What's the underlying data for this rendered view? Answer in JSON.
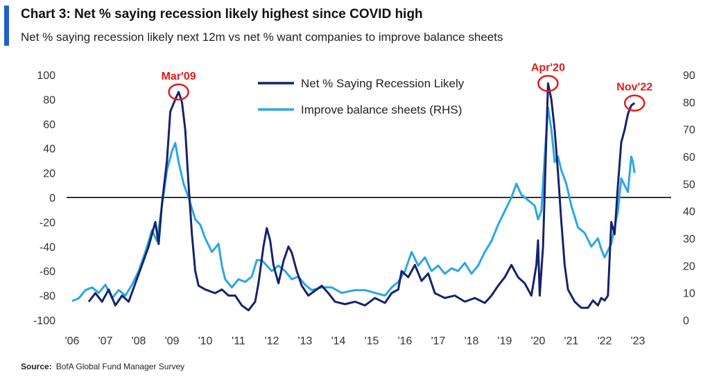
{
  "header": {
    "title": "Chart 3: Net % saying recession likely highest since COVID high",
    "subtitle": "Net % saying recession likely next 12m vs net % want companies to improve balance sheets"
  },
  "source": {
    "label": "Source:",
    "text": "BofA Global Fund Manager Survey"
  },
  "colors": {
    "accent": "#1f5fd1",
    "recession": "#16226b",
    "balance": "#2aa6e3",
    "annotation": "#e31b1b",
    "zero_line": "#333333"
  },
  "chart_data": {
    "type": "line",
    "xlim": [
      2006,
      2023.3
    ],
    "x_ticks": [
      {
        "x": 2006,
        "label": "'06"
      },
      {
        "x": 2007,
        "label": "'07"
      },
      {
        "x": 2008,
        "label": "'08"
      },
      {
        "x": 2009,
        "label": "'09"
      },
      {
        "x": 2010,
        "label": "'10"
      },
      {
        "x": 2011,
        "label": "'11"
      },
      {
        "x": 2012,
        "label": "'12"
      },
      {
        "x": 2013,
        "label": "'13"
      },
      {
        "x": 2014,
        "label": "'14"
      },
      {
        "x": 2015,
        "label": "'15"
      },
      {
        "x": 2016,
        "label": "'16"
      },
      {
        "x": 2017,
        "label": "'17"
      },
      {
        "x": 2018,
        "label": "'18"
      },
      {
        "x": 2019,
        "label": "'19"
      },
      {
        "x": 2020,
        "label": "'20"
      },
      {
        "x": 2021,
        "label": "'21"
      },
      {
        "x": 2022,
        "label": "'22"
      },
      {
        "x": 2023,
        "label": "'23"
      }
    ],
    "y_left": {
      "lim": [
        -100,
        100
      ],
      "ticks": [
        100,
        80,
        60,
        40,
        20,
        0,
        -20,
        -40,
        -60,
        -80,
        -100
      ]
    },
    "y_right": {
      "lim": [
        0,
        90
      ],
      "ticks": [
        90,
        80,
        70,
        60,
        50,
        40,
        30,
        20,
        10,
        0
      ]
    },
    "legend_position": "top-center",
    "series": [
      {
        "name": "Net % Saying Recession Likely",
        "axis": "left",
        "color": "#16226b",
        "points": [
          [
            2006.5,
            -85
          ],
          [
            2006.7,
            -78
          ],
          [
            2006.9,
            -85
          ],
          [
            2007.1,
            -75
          ],
          [
            2007.3,
            -88
          ],
          [
            2007.5,
            -80
          ],
          [
            2007.7,
            -85
          ],
          [
            2007.9,
            -70
          ],
          [
            2008.1,
            -55
          ],
          [
            2008.3,
            -40
          ],
          [
            2008.5,
            -20
          ],
          [
            2008.6,
            -38
          ],
          [
            2008.7,
            -5
          ],
          [
            2008.85,
            30
          ],
          [
            2008.95,
            70
          ],
          [
            2009.1,
            80
          ],
          [
            2009.2,
            86
          ],
          [
            2009.3,
            78
          ],
          [
            2009.4,
            55
          ],
          [
            2009.5,
            10
          ],
          [
            2009.6,
            -30
          ],
          [
            2009.7,
            -60
          ],
          [
            2009.8,
            -72
          ],
          [
            2010.0,
            -75
          ],
          [
            2010.3,
            -78
          ],
          [
            2010.5,
            -75
          ],
          [
            2010.7,
            -80
          ],
          [
            2010.9,
            -80
          ],
          [
            2011.1,
            -88
          ],
          [
            2011.3,
            -92
          ],
          [
            2011.5,
            -85
          ],
          [
            2011.6,
            -70
          ],
          [
            2011.75,
            -40
          ],
          [
            2011.85,
            -25
          ],
          [
            2011.95,
            -35
          ],
          [
            2012.05,
            -55
          ],
          [
            2012.2,
            -70
          ],
          [
            2012.35,
            -52
          ],
          [
            2012.5,
            -40
          ],
          [
            2012.6,
            -45
          ],
          [
            2012.75,
            -60
          ],
          [
            2012.9,
            -72
          ],
          [
            2013.1,
            -80
          ],
          [
            2013.3,
            -76
          ],
          [
            2013.5,
            -72
          ],
          [
            2013.7,
            -78
          ],
          [
            2013.9,
            -85
          ],
          [
            2014.2,
            -87
          ],
          [
            2014.5,
            -85
          ],
          [
            2014.8,
            -88
          ],
          [
            2015.1,
            -82
          ],
          [
            2015.4,
            -86
          ],
          [
            2015.6,
            -78
          ],
          [
            2015.8,
            -75
          ],
          [
            2015.9,
            -60
          ],
          [
            2016.1,
            -65
          ],
          [
            2016.3,
            -55
          ],
          [
            2016.5,
            -68
          ],
          [
            2016.7,
            -62
          ],
          [
            2016.9,
            -78
          ],
          [
            2017.2,
            -82
          ],
          [
            2017.5,
            -80
          ],
          [
            2017.8,
            -85
          ],
          [
            2018.1,
            -82
          ],
          [
            2018.4,
            -86
          ],
          [
            2018.6,
            -80
          ],
          [
            2018.8,
            -72
          ],
          [
            2019.0,
            -65
          ],
          [
            2019.2,
            -55
          ],
          [
            2019.4,
            -65
          ],
          [
            2019.6,
            -70
          ],
          [
            2019.8,
            -80
          ],
          [
            2019.95,
            -55
          ],
          [
            2020.0,
            -35
          ],
          [
            2020.05,
            -80
          ],
          [
            2020.15,
            -40
          ],
          [
            2020.25,
            50
          ],
          [
            2020.3,
            93
          ],
          [
            2020.4,
            80
          ],
          [
            2020.5,
            55
          ],
          [
            2020.6,
            20
          ],
          [
            2020.7,
            -20
          ],
          [
            2020.8,
            -55
          ],
          [
            2020.9,
            -75
          ],
          [
            2021.1,
            -85
          ],
          [
            2021.3,
            -90
          ],
          [
            2021.5,
            -90
          ],
          [
            2021.65,
            -84
          ],
          [
            2021.8,
            -88
          ],
          [
            2021.9,
            -82
          ],
          [
            2022.0,
            -84
          ],
          [
            2022.1,
            -80
          ],
          [
            2022.2,
            -20
          ],
          [
            2022.3,
            -30
          ],
          [
            2022.4,
            10
          ],
          [
            2022.5,
            45
          ],
          [
            2022.6,
            55
          ],
          [
            2022.7,
            68
          ],
          [
            2022.8,
            75
          ],
          [
            2022.9,
            77
          ]
        ]
      },
      {
        "name": "Improve balance sheets (RHS)",
        "axis": "right",
        "color": "#2aa6e3",
        "points": [
          [
            2006.0,
            7
          ],
          [
            2006.2,
            8
          ],
          [
            2006.4,
            11
          ],
          [
            2006.6,
            12
          ],
          [
            2006.8,
            10
          ],
          [
            2007.0,
            13
          ],
          [
            2007.2,
            8
          ],
          [
            2007.4,
            11
          ],
          [
            2007.6,
            9
          ],
          [
            2007.8,
            13
          ],
          [
            2008.0,
            18
          ],
          [
            2008.2,
            25
          ],
          [
            2008.4,
            33
          ],
          [
            2008.55,
            29
          ],
          [
            2008.7,
            42
          ],
          [
            2008.85,
            55
          ],
          [
            2009.0,
            62
          ],
          [
            2009.1,
            65
          ],
          [
            2009.2,
            58
          ],
          [
            2009.35,
            50
          ],
          [
            2009.5,
            45
          ],
          [
            2009.7,
            37
          ],
          [
            2009.85,
            35
          ],
          [
            2010.0,
            30
          ],
          [
            2010.2,
            25
          ],
          [
            2010.4,
            28
          ],
          [
            2010.5,
            20
          ],
          [
            2010.6,
            15
          ],
          [
            2010.8,
            12
          ],
          [
            2011.0,
            15
          ],
          [
            2011.2,
            14
          ],
          [
            2011.4,
            16
          ],
          [
            2011.55,
            22
          ],
          [
            2011.7,
            22
          ],
          [
            2011.85,
            20
          ],
          [
            2012.0,
            18
          ],
          [
            2012.2,
            20
          ],
          [
            2012.4,
            18
          ],
          [
            2012.6,
            15
          ],
          [
            2012.8,
            16
          ],
          [
            2013.0,
            13
          ],
          [
            2013.2,
            11
          ],
          [
            2013.5,
            12
          ],
          [
            2013.8,
            12
          ],
          [
            2014.1,
            10
          ],
          [
            2014.5,
            11
          ],
          [
            2014.8,
            11
          ],
          [
            2015.1,
            10
          ],
          [
            2015.4,
            9
          ],
          [
            2015.6,
            12
          ],
          [
            2015.8,
            14
          ],
          [
            2016.0,
            18
          ],
          [
            2016.2,
            25
          ],
          [
            2016.4,
            20
          ],
          [
            2016.6,
            23
          ],
          [
            2016.8,
            18
          ],
          [
            2017.0,
            20
          ],
          [
            2017.2,
            17
          ],
          [
            2017.4,
            19
          ],
          [
            2017.6,
            18
          ],
          [
            2017.8,
            21
          ],
          [
            2018.0,
            17
          ],
          [
            2018.2,
            20
          ],
          [
            2018.4,
            25
          ],
          [
            2018.6,
            29
          ],
          [
            2018.8,
            35
          ],
          [
            2019.0,
            40
          ],
          [
            2019.2,
            45
          ],
          [
            2019.35,
            50
          ],
          [
            2019.5,
            46
          ],
          [
            2019.7,
            44
          ],
          [
            2019.9,
            42
          ],
          [
            2020.0,
            37
          ],
          [
            2020.1,
            40
          ],
          [
            2020.2,
            60
          ],
          [
            2020.3,
            78
          ],
          [
            2020.4,
            70
          ],
          [
            2020.5,
            58
          ],
          [
            2020.6,
            60
          ],
          [
            2020.7,
            55
          ],
          [
            2020.85,
            50
          ],
          [
            2021.0,
            42
          ],
          [
            2021.2,
            34
          ],
          [
            2021.4,
            32
          ],
          [
            2021.6,
            27
          ],
          [
            2021.8,
            30
          ],
          [
            2021.9,
            26
          ],
          [
            2022.0,
            23
          ],
          [
            2022.2,
            28
          ],
          [
            2022.4,
            40
          ],
          [
            2022.5,
            52
          ],
          [
            2022.7,
            47
          ],
          [
            2022.8,
            60
          ],
          [
            2022.85,
            58
          ],
          [
            2022.9,
            54
          ]
        ]
      }
    ],
    "annotations": [
      {
        "label": "Mar'09",
        "x": 2009.2,
        "y": 86
      },
      {
        "label": "Apr'20",
        "x": 2020.3,
        "y": 93
      },
      {
        "label": "Nov'22",
        "x": 2022.9,
        "y": 77
      }
    ]
  }
}
